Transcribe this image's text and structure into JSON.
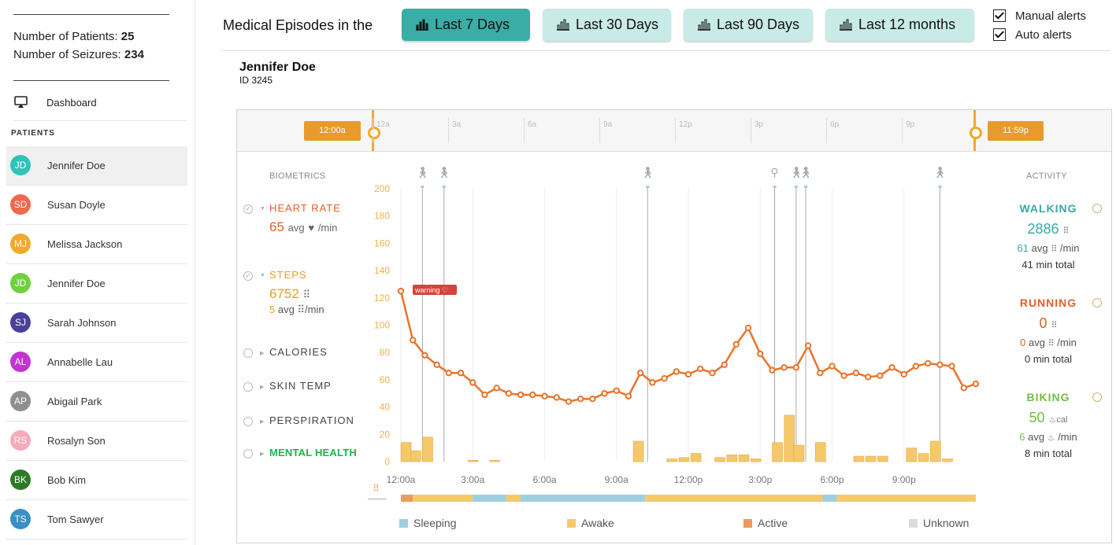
{
  "sidebar": {
    "stats": {
      "patients_label": "Number of  Patients:",
      "patients_value": "25",
      "seizures_label": "Number of  Seizures:",
      "seizures_value": "234"
    },
    "dashboard_label": "Dashboard",
    "patients_header": "PATIENTS",
    "patients": [
      {
        "initials": "JD",
        "name": "Jennifer Doe",
        "color": "#2fc3b6"
      },
      {
        "initials": "SD",
        "name": "Susan Doyle",
        "color": "#ee6a4d"
      },
      {
        "initials": "MJ",
        "name": "Melissa Jackson",
        "color": "#f0a92a"
      },
      {
        "initials": "JD",
        "name": "Jennifer Doe",
        "color": "#6fd13b"
      },
      {
        "initials": "SJ",
        "name": "Sarah Johnson",
        "color": "#4a3f9a"
      },
      {
        "initials": "AL",
        "name": "Annabelle Lau",
        "color": "#c234d0"
      },
      {
        "initials": "AP",
        "name": "Abigail Park",
        "color": "#8f8f8f"
      },
      {
        "initials": "RS",
        "name": "Rosalyn Son",
        "color": "#f7aab9"
      },
      {
        "initials": "BK",
        "name": "Bob Kim",
        "color": "#2d7a25"
      },
      {
        "initials": "TS",
        "name": "Tom Sawyer",
        "color": "#3a8fc4"
      }
    ]
  },
  "header": {
    "label": "Medical Episodes in the",
    "tabs": [
      "Last 7 Days",
      "Last 30 Days",
      "Last 90 Days",
      "Last 12 months"
    ],
    "active_tab": 0,
    "manual_alerts": "Manual alerts",
    "auto_alerts": "Auto alerts"
  },
  "patient": {
    "name": "Jennifer Doe",
    "id": "ID 3245"
  },
  "timeline": {
    "ticks": [
      "12a",
      "3a",
      "6a",
      "9a",
      "12p",
      "3p",
      "6p",
      "9p"
    ],
    "start": "12:00a",
    "end": "11:59p"
  },
  "biometrics": {
    "header": "BIOMETRICS",
    "items": [
      {
        "title": "HEART RATE",
        "color": "#e0602a",
        "value": "65",
        "unit": "avg",
        "sub": "/min",
        "checked": true
      },
      {
        "title": "STEPS",
        "color": "#e89b2c",
        "value": "6752",
        "sub_value": "5",
        "sub_unit": "avg",
        "sub": "/min",
        "checked": true
      },
      {
        "title": "CALORIES",
        "color": "#444444"
      },
      {
        "title": "SKIN TEMP",
        "color": "#444444"
      },
      {
        "title": "PERSPIRATION",
        "color": "#444444"
      },
      {
        "title": "MENTAL HEALTH",
        "color": "#22b14c"
      }
    ]
  },
  "activity": {
    "header": "ACTIVITY",
    "items": [
      {
        "title": "WALKING",
        "color": "#3aa9a3",
        "big": "2886",
        "s1_val": "61",
        "s1_unit": "avg",
        "s1_tail": "/min",
        "s2": "41 min total"
      },
      {
        "title": "RUNNING",
        "color": "#e0602a",
        "big": "0",
        "s1_val": "0",
        "s1_unit": "avg",
        "s1_tail": "/min",
        "s2": "0 min total"
      },
      {
        "title": "BIKING",
        "color": "#6fbf44",
        "big": "50",
        "big_unit": "cal",
        "s1_val": "6",
        "s1_unit": "avg",
        "s1_tail": "/min",
        "s2": "8 min total"
      }
    ]
  },
  "chart_data": {
    "type": "line",
    "y_ticks": [
      0,
      20,
      40,
      60,
      80,
      100,
      120,
      140,
      160,
      180,
      200
    ],
    "ylim": [
      0,
      200
    ],
    "x_labels": [
      "12:00a",
      "3:00a",
      "6:00a",
      "9:00a",
      "12:00p",
      "3:00p",
      "6:00p",
      "9:00p"
    ],
    "heart_rate": [
      125,
      89,
      78,
      71,
      65,
      65,
      58,
      49,
      54,
      50,
      49,
      49,
      48,
      47,
      44,
      46,
      46,
      50,
      52,
      48,
      65,
      58,
      61,
      66,
      64,
      68,
      65,
      71,
      86,
      98,
      79,
      67,
      69,
      69,
      85,
      65,
      70,
      63,
      65,
      62,
      63,
      69,
      64,
      70,
      72,
      71,
      70,
      54,
      57
    ],
    "steps_bars": [
      {
        "x": 0.2,
        "v": 14
      },
      {
        "x": 0.6,
        "v": 8
      },
      {
        "x": 1.1,
        "v": 18
      },
      {
        "x": 3.0,
        "v": 1
      },
      {
        "x": 3.9,
        "v": 1
      },
      {
        "x": 9.9,
        "v": 15
      },
      {
        "x": 11.3,
        "v": 2
      },
      {
        "x": 11.8,
        "v": 3
      },
      {
        "x": 12.3,
        "v": 6
      },
      {
        "x": 13.3,
        "v": 3
      },
      {
        "x": 13.8,
        "v": 5
      },
      {
        "x": 14.3,
        "v": 5
      },
      {
        "x": 14.8,
        "v": 2
      },
      {
        "x": 15.7,
        "v": 14
      },
      {
        "x": 16.2,
        "v": 34
      },
      {
        "x": 16.6,
        "v": 12
      },
      {
        "x": 17.5,
        "v": 14
      },
      {
        "x": 19.1,
        "v": 4
      },
      {
        "x": 19.6,
        "v": 4
      },
      {
        "x": 20.1,
        "v": 4
      },
      {
        "x": 21.3,
        "v": 10
      },
      {
        "x": 21.8,
        "v": 6
      },
      {
        "x": 22.3,
        "v": 15
      },
      {
        "x": 22.8,
        "v": 2
      }
    ],
    "activity_lines": [
      0.9,
      1.8,
      10.3,
      15.6,
      16.5,
      16.9,
      22.5
    ],
    "warning_label": "warning",
    "sleep_segments": [
      {
        "from": 0,
        "to": 0.2,
        "state": "active"
      },
      {
        "from": 0.2,
        "to": 0.5,
        "state": "active"
      },
      {
        "from": 0.5,
        "to": 3.0,
        "state": "awake"
      },
      {
        "from": 3.0,
        "to": 4.4,
        "state": "sleeping"
      },
      {
        "from": 4.4,
        "to": 5.0,
        "state": "awake"
      },
      {
        "from": 5.0,
        "to": 10.2,
        "state": "sleeping"
      },
      {
        "from": 10.2,
        "to": 17.6,
        "state": "awake"
      },
      {
        "from": 17.6,
        "to": 18.2,
        "state": "sleeping"
      },
      {
        "from": 18.2,
        "to": 24,
        "state": "awake"
      }
    ],
    "legend": [
      {
        "label": "Sleeping",
        "color": "#9dcfe0"
      },
      {
        "label": "Awake",
        "color": "#f5c86a"
      },
      {
        "label": "Active",
        "color": "#e89b5c"
      },
      {
        "label": "Unknown",
        "color": "#dcdcdc"
      }
    ]
  }
}
